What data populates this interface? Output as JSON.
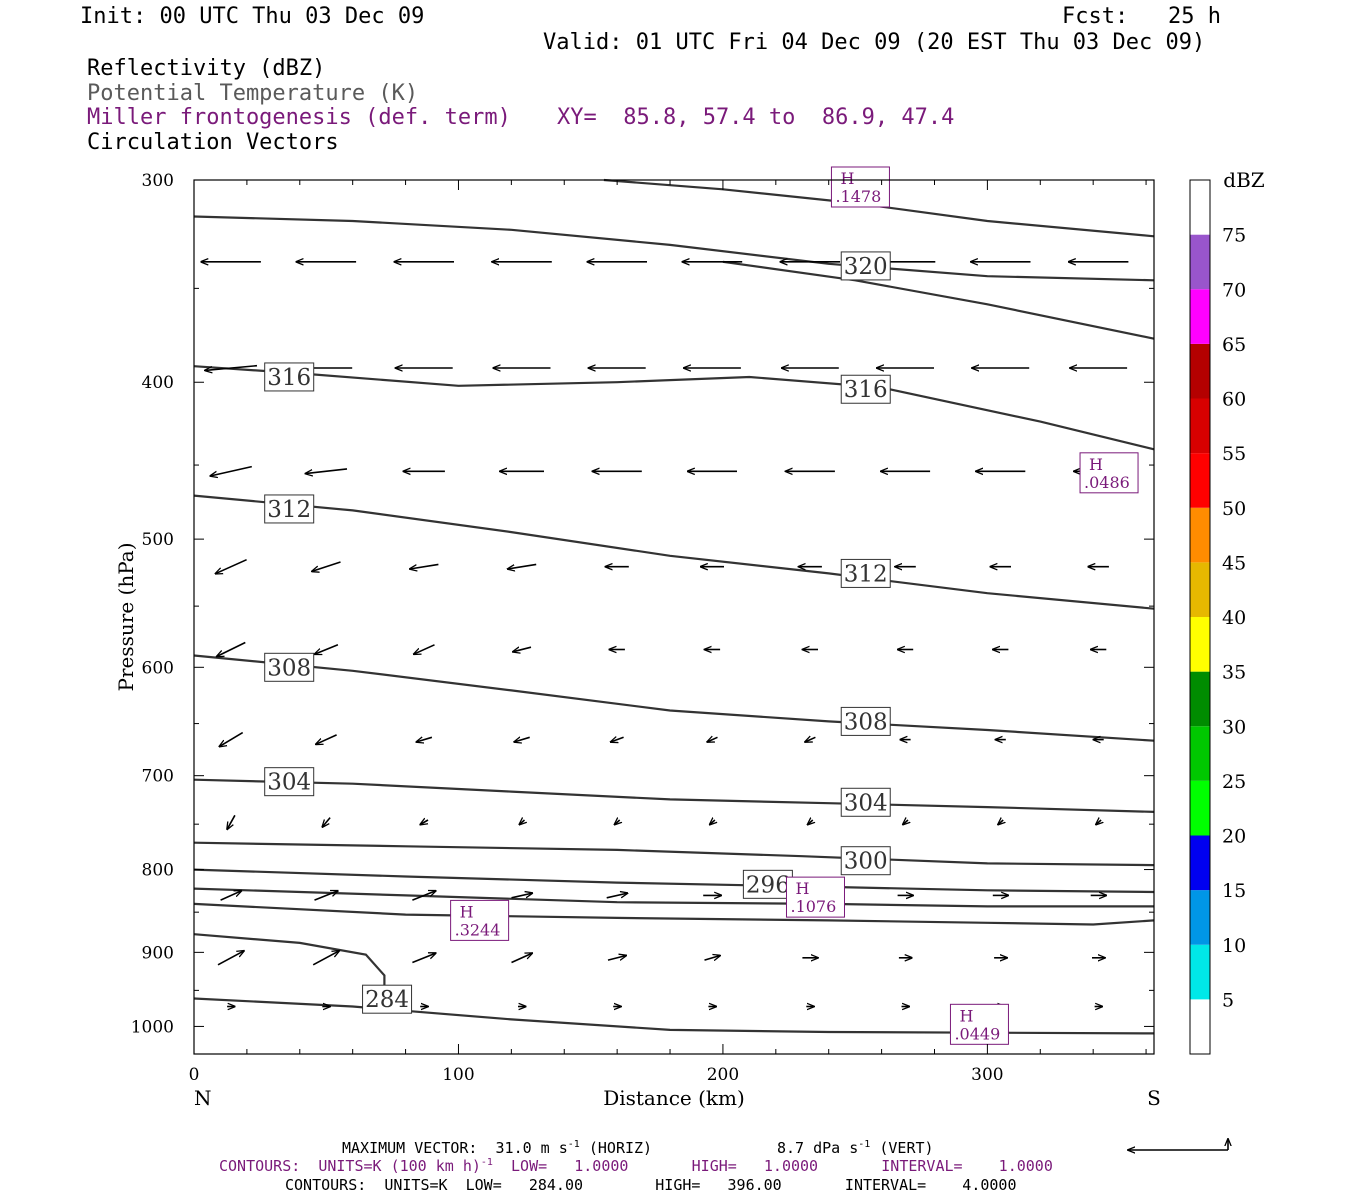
{
  "header": {
    "init": "Init: 00 UTC Thu 03 Dec 09",
    "fcst": "Fcst:   25 h",
    "valid": "Valid: 01 UTC Fri 04 Dec 09 (20 EST Thu 03 Dec 09)",
    "field1": "Reflectivity (dBZ)",
    "field2": "Potential Temperature (K)",
    "field3": "Miller frontogenesis (def. term)",
    "xy": "XY=  85.8, 57.4 to  86.9, 47.4",
    "field4": "Circulation Vectors"
  },
  "footer": {
    "max_vector": "MAXIMUM VECTOR:  31.0 m s",
    "max_vector_unit": "-1",
    "max_vector_horiz": " (HORIZ)",
    "max_vector_vert": "8.7 dPa s",
    "max_vector_vert_unit": "-1",
    "max_vector_vert_tail": " (VERT)",
    "contours1": "CONTOURS:  UNITS=K (100 km h)",
    "contours1_unit": "-1",
    "contours1_tail": "  LOW=   1.0000       HIGH=   1.0000       INTERVAL=    1.0000",
    "contours2": "CONTOURS:  UNITS=K  LOW=   284.00        HIGH=   396.00       INTERVAL=    4.0000"
  },
  "colors": {
    "theta": "#333333",
    "frontogenesis": "#7a1a7a",
    "vector": "#000000"
  },
  "colorbar": {
    "title": "dBZ",
    "ticks": [
      "5",
      "10",
      "15",
      "20",
      "25",
      "30",
      "35",
      "40",
      "45",
      "50",
      "55",
      "60",
      "65",
      "70",
      "75"
    ],
    "bins": [
      {
        "from": 0,
        "to": 5,
        "color": "#ffffff"
      },
      {
        "from": 5,
        "to": 10,
        "color": "#00e8e8"
      },
      {
        "from": 10,
        "to": 15,
        "color": "#0096e6"
      },
      {
        "from": 15,
        "to": 20,
        "color": "#0000f0"
      },
      {
        "from": 20,
        "to": 25,
        "color": "#00ff00"
      },
      {
        "from": 25,
        "to": 30,
        "color": "#00c800"
      },
      {
        "from": 30,
        "to": 35,
        "color": "#008c00"
      },
      {
        "from": 35,
        "to": 40,
        "color": "#ffff00"
      },
      {
        "from": 40,
        "to": 45,
        "color": "#e6b800"
      },
      {
        "from": 45,
        "to": 50,
        "color": "#ff8c00"
      },
      {
        "from": 50,
        "to": 55,
        "color": "#ff0000"
      },
      {
        "from": 55,
        "to": 60,
        "color": "#d80000"
      },
      {
        "from": 60,
        "to": 65,
        "color": "#b40000"
      },
      {
        "from": 65,
        "to": 70,
        "color": "#ff00ff"
      },
      {
        "from": 70,
        "to": 75,
        "color": "#9955cc"
      },
      {
        "from": 75,
        "to": 80,
        "color": "#ffffff"
      }
    ]
  },
  "chart_data": {
    "type": "cross-section",
    "xlabel": "Distance (km)",
    "ylabel": "Pressure (hPa)",
    "xlim": [
      0,
      363
    ],
    "ylim": [
      1040,
      300
    ],
    "y_scale": "log",
    "x_ticks": [
      "0",
      "100",
      "200",
      "300"
    ],
    "y_ticks": [
      "300",
      "400",
      "500",
      "600",
      "700",
      "800",
      "900",
      "1000"
    ],
    "x_left_label": "N",
    "x_right_label": "S",
    "theta_contours": [
      {
        "label": "320",
        "label_at": [
          254,
          339
        ],
        "points": [
          [
            0,
            316
          ],
          [
            60,
            318
          ],
          [
            120,
            322
          ],
          [
            180,
            329
          ],
          [
            240,
            338
          ],
          [
            300,
            344
          ],
          [
            363,
            346
          ]
        ]
      },
      {
        "label": "",
        "label_at": null,
        "points": [
          [
            155,
            300
          ],
          [
            200,
            304
          ],
          [
            250,
            310
          ],
          [
            300,
            318
          ],
          [
            363,
            325
          ]
        ]
      },
      {
        "label": "",
        "label_at": null,
        "points": [
          [
            200,
            337
          ],
          [
            250,
            346
          ],
          [
            300,
            358
          ],
          [
            363,
            376
          ]
        ]
      },
      {
        "label": "316",
        "label_at": [
          36,
          397
        ],
        "label2": "316",
        "label2_at": [
          254,
          404
        ],
        "points": [
          [
            0,
            391
          ],
          [
            40,
            395
          ],
          [
            100,
            402
          ],
          [
            160,
            400
          ],
          [
            210,
            397
          ],
          [
            260,
            403
          ],
          [
            320,
            423
          ],
          [
            363,
            440
          ]
        ]
      },
      {
        "label": "312",
        "label_at": [
          36,
          479
        ],
        "label2": "312",
        "label2_at": [
          254,
          525
        ],
        "points": [
          [
            0,
            470
          ],
          [
            60,
            480
          ],
          [
            120,
            495
          ],
          [
            180,
            512
          ],
          [
            240,
            525
          ],
          [
            300,
            540
          ],
          [
            363,
            552
          ]
        ]
      },
      {
        "label": "308",
        "label_at": [
          36,
          600
        ],
        "label2": "308",
        "label2_at": [
          254,
          648
        ],
        "points": [
          [
            0,
            590
          ],
          [
            60,
            603
          ],
          [
            120,
            620
          ],
          [
            180,
            638
          ],
          [
            240,
            648
          ],
          [
            300,
            656
          ],
          [
            363,
            666
          ]
        ]
      },
      {
        "label": "304",
        "label_at": [
          36,
          706
        ],
        "label2": "304",
        "label2_at": [
          254,
          727
        ],
        "points": [
          [
            0,
            704
          ],
          [
            60,
            708
          ],
          [
            120,
            716
          ],
          [
            180,
            724
          ],
          [
            240,
            728
          ],
          [
            300,
            732
          ],
          [
            363,
            737
          ]
        ]
      },
      {
        "label": "300",
        "label_at": [
          254,
          790
        ],
        "points": [
          [
            0,
            770
          ],
          [
            80,
            774
          ],
          [
            160,
            778
          ],
          [
            230,
            785
          ],
          [
            300,
            793
          ],
          [
            363,
            795
          ]
        ]
      },
      {
        "label": "296",
        "label_at": [
          217,
          817
        ],
        "points": [
          [
            0,
            800
          ],
          [
            80,
            808
          ],
          [
            160,
            815
          ],
          [
            240,
            820
          ],
          [
            300,
            824
          ],
          [
            363,
            826
          ]
        ]
      },
      {
        "label": "",
        "label_at": null,
        "points": [
          [
            0,
            822
          ],
          [
            80,
            830
          ],
          [
            160,
            838
          ],
          [
            240,
            840
          ],
          [
            300,
            843
          ],
          [
            363,
            843
          ]
        ]
      },
      {
        "label": "",
        "label_at": null,
        "points": [
          [
            0,
            840
          ],
          [
            80,
            853
          ],
          [
            160,
            857
          ],
          [
            240,
            860
          ],
          [
            300,
            863
          ],
          [
            340,
            865
          ],
          [
            363,
            860
          ]
        ]
      },
      {
        "label": "284",
        "label_at": [
          73,
          962
        ],
        "points": [
          [
            0,
            877
          ],
          [
            40,
            888
          ],
          [
            65,
            903
          ],
          [
            72,
            930
          ],
          [
            72,
            960
          ]
        ]
      },
      {
        "label": "",
        "label_at": null,
        "points": [
          [
            0,
            961
          ],
          [
            60,
            972
          ],
          [
            120,
            990
          ],
          [
            180,
            1005
          ],
          [
            240,
            1008
          ],
          [
            300,
            1009
          ],
          [
            363,
            1010
          ]
        ]
      }
    ],
    "frontogenesis_maxima": [
      {
        "label": "H",
        "value": ".1478",
        "at": [
          252,
          303
        ]
      },
      {
        "label": "H",
        "value": ".0486",
        "at": [
          346,
          455
        ]
      },
      {
        "label": "H",
        "value": ".1076",
        "at": [
          235,
          832
        ]
      },
      {
        "label": "H",
        "value": ".3244",
        "at": [
          108,
          860
        ]
      },
      {
        "label": "H",
        "value": ".0449",
        "at": [
          297,
          997
        ]
      }
    ],
    "vector_columns_km": [
      14,
      50,
      87,
      124,
      160,
      196,
      233,
      269,
      305,
      342
    ],
    "vector_levels": [
      {
        "p": 337,
        "u": [
          -23,
          -23,
          -23,
          -23,
          -23,
          -23,
          -23,
          -23,
          -23,
          -23
        ],
        "w": [
          0,
          0,
          0,
          0,
          0,
          0,
          0,
          0,
          0,
          0
        ]
      },
      {
        "p": 392,
        "u": [
          -20,
          -20,
          -22,
          -22,
          -22,
          -22,
          -22,
          -22,
          -22,
          -22
        ],
        "w": [
          -1,
          0,
          0,
          0,
          0,
          0,
          0,
          0,
          0,
          0
        ]
      },
      {
        "p": 454,
        "u": [
          -16,
          -16,
          -16,
          -17,
          -19,
          -19,
          -19,
          -19,
          -19,
          -19
        ],
        "w": [
          -2,
          -1,
          0,
          0,
          0,
          0,
          0,
          0,
          0,
          0
        ]
      },
      {
        "p": 520,
        "u": [
          -12,
          -11,
          -11,
          -11,
          -9,
          -9,
          -9,
          -8,
          -8,
          -8
        ],
        "w": [
          -3,
          -2,
          -1,
          -1,
          0,
          0,
          0,
          0,
          0,
          0
        ]
      },
      {
        "p": 585,
        "u": [
          -11,
          -9,
          -8,
          -7,
          -6,
          -6,
          -6,
          -6,
          -6,
          -6
        ],
        "w": [
          -3,
          -2,
          -2,
          -1,
          0,
          0,
          0,
          0,
          0,
          0
        ]
      },
      {
        "p": 665,
        "u": [
          -9,
          -8,
          -6,
          -6,
          -5,
          -4,
          -4,
          -4,
          -4,
          -4
        ],
        "w": [
          -3,
          -2,
          -1,
          -1,
          -1,
          -1,
          -1,
          0,
          0,
          0
        ]
      },
      {
        "p": 748,
        "u": [
          -3,
          -3,
          -3,
          -2,
          -2,
          -2,
          -2,
          -2,
          -2,
          -2
        ],
        "w": [
          -3,
          -2,
          -1,
          -1,
          -1,
          -1,
          -1,
          -1,
          -1,
          -1
        ]
      },
      {
        "p": 830,
        "u": [
          8,
          9,
          9,
          8,
          8,
          7,
          6,
          6,
          6,
          6
        ],
        "w": [
          2,
          2,
          2,
          1,
          1,
          0,
          0,
          0,
          0,
          0
        ]
      },
      {
        "p": 907,
        "u": [
          10,
          10,
          9,
          8,
          7,
          6,
          6,
          5,
          5,
          5
        ],
        "w": [
          3,
          3,
          2,
          2,
          1,
          1,
          0,
          0,
          0,
          0
        ]
      },
      {
        "p": 972,
        "u": [
          3,
          3,
          3,
          3,
          3,
          3,
          3,
          3,
          3,
          3
        ],
        "w": [
          0,
          0,
          0,
          0,
          0,
          0,
          0,
          0,
          0,
          0
        ]
      }
    ]
  }
}
